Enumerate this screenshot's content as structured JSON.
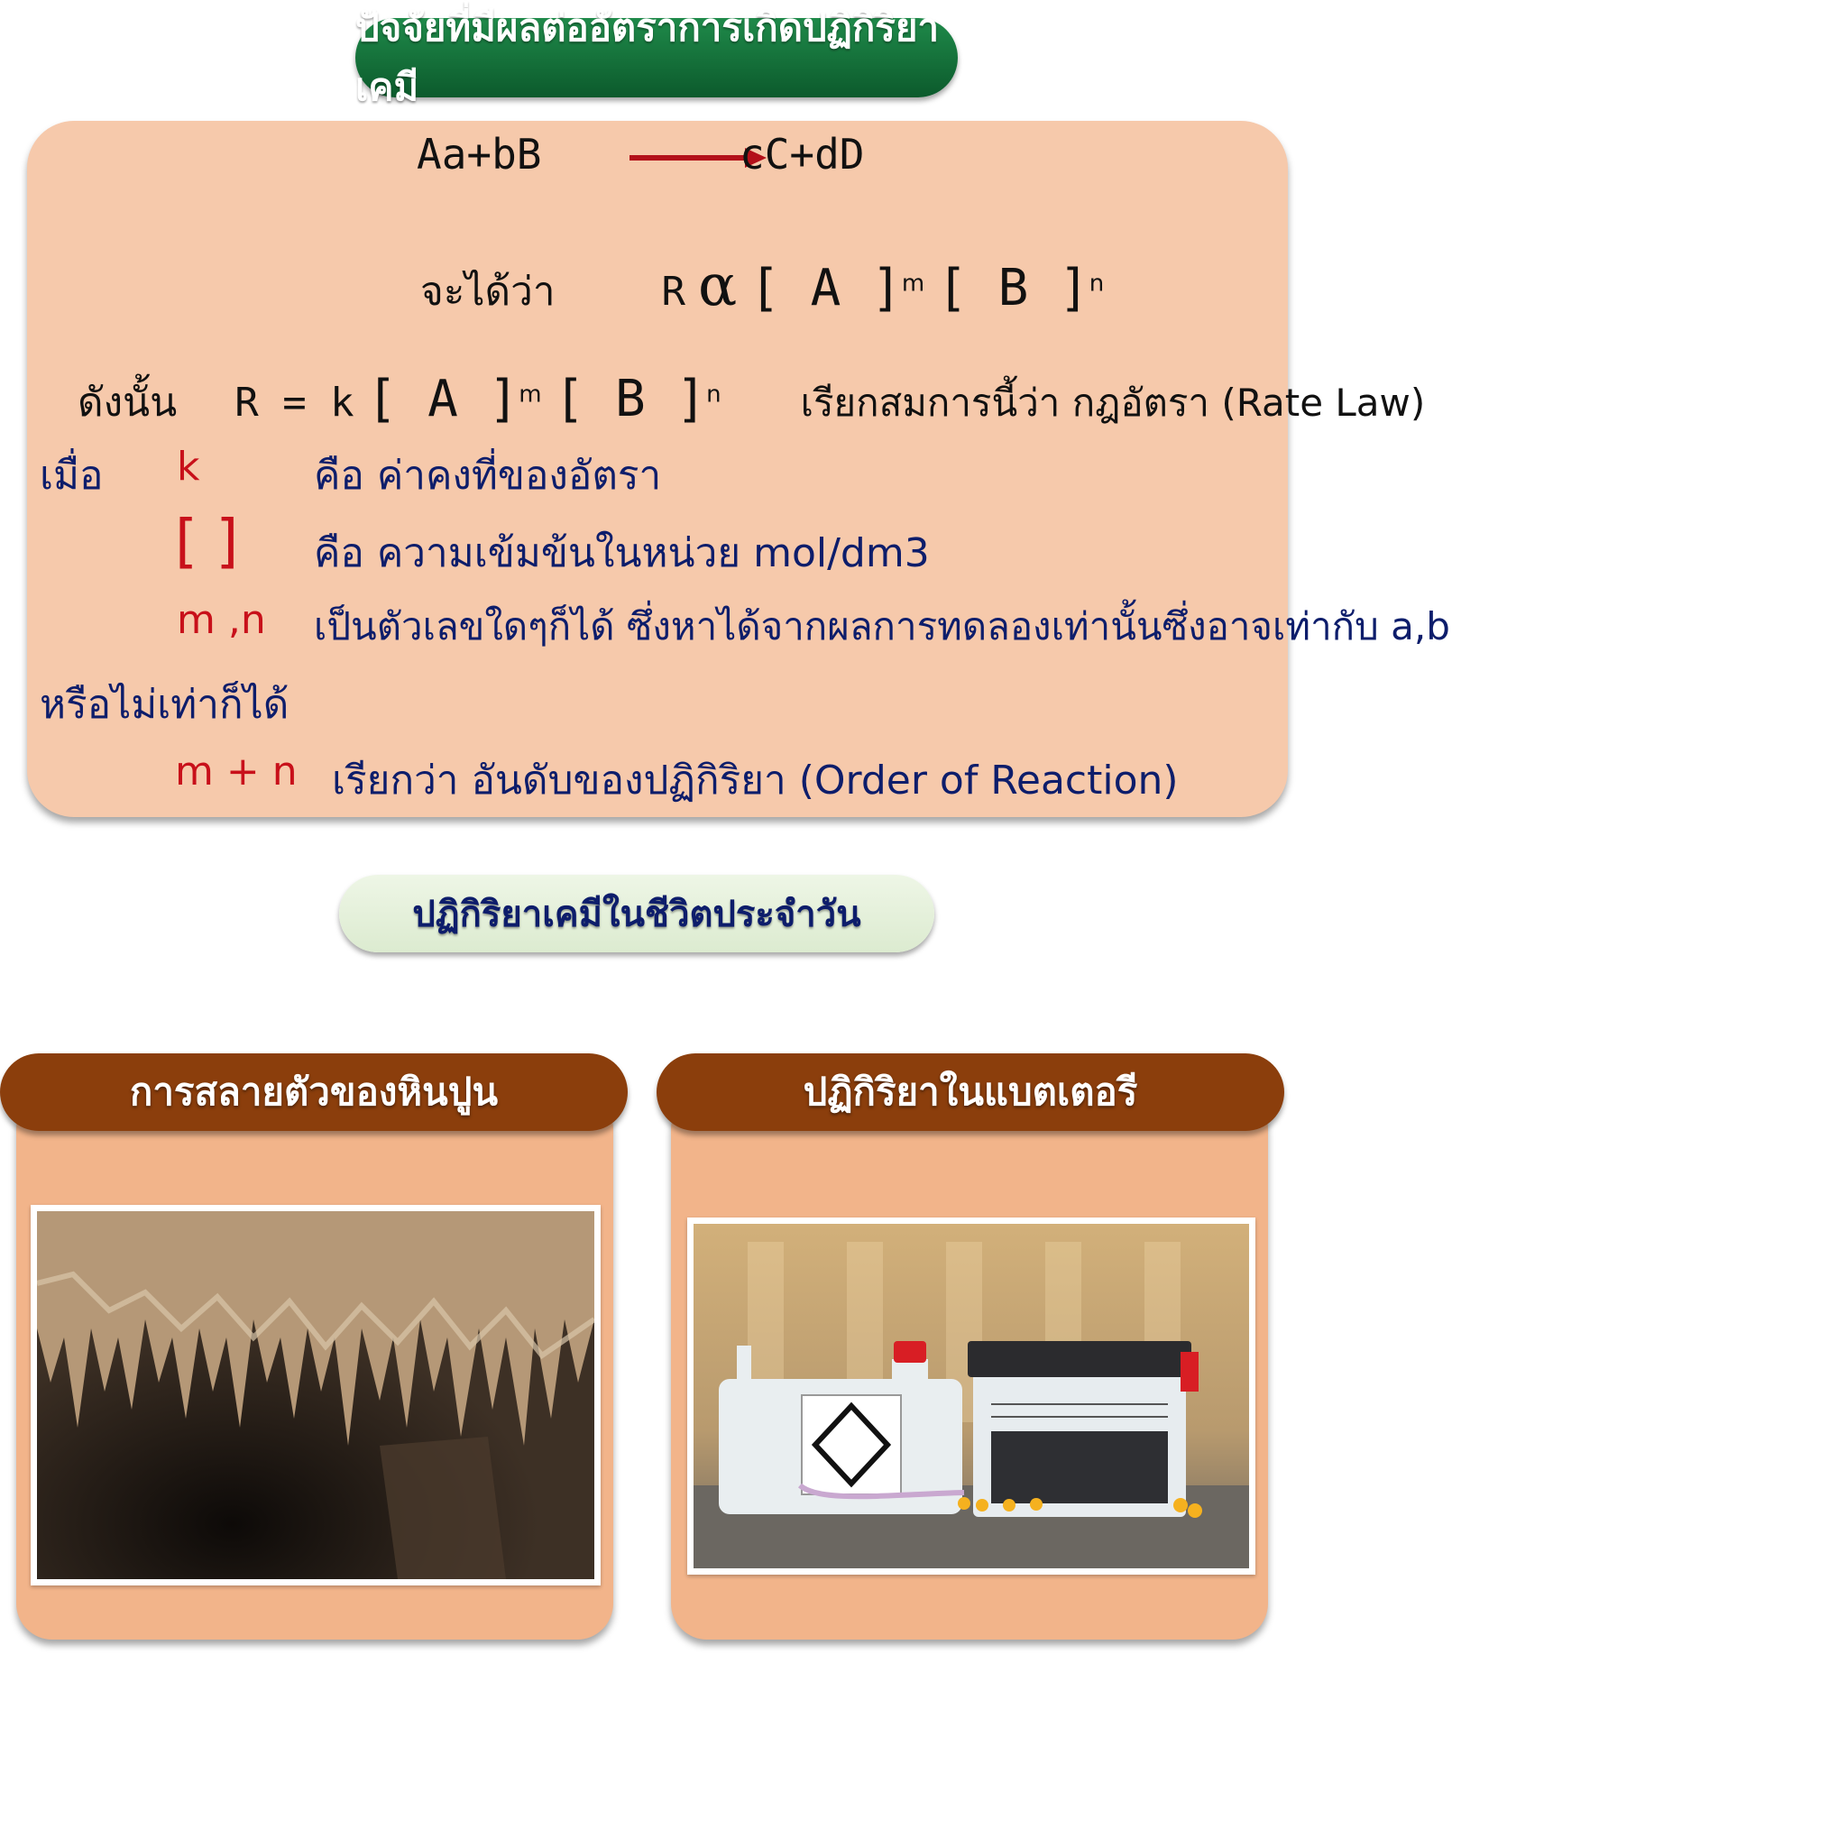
{
  "title": "ปัจจัยที่มีผลต่ออัตราการเกิดปฏิกิริยาเคมี",
  "equation": {
    "reactants": "Aa+bB",
    "products": "cC+dD"
  },
  "proportional": {
    "prefix": "จะได้ว่า",
    "lhs": "R",
    "alpha": "α",
    "b1": "[ A ]",
    "exp_m": "m",
    "b2": "[ B ]",
    "exp_n": "n"
  },
  "rate_law": {
    "prefix": "ดังนั้น",
    "lhs": "R = k",
    "b1": "[ A ]",
    "exp_m": "m",
    "b2": "[ B ]",
    "exp_n": "n",
    "name": "เรียกสมการนี้ว่า  กฎอัตรา  (Rate  Law)"
  },
  "definitions": {
    "when": "เมื่อ",
    "k_symbol": "k",
    "k_text": "คือ ค่าคงที่ของอัตรา",
    "bracket_symbol": "[ ]",
    "bracket_text": "คือ ความเข้มข้นในหน่วย   mol/dm3",
    "mn_symbol": "m ,n",
    "mn_text": "เป็นตัวเลขใดๆก็ได้  ซึ่งหาได้จากผลการทดลองเท่านั้นซึ่งอาจเท่ากับ  a,b",
    "mn_text_cont": "หรือไม่เท่าก็ได้",
    "order_symbol": "m + n",
    "order_text": "เรียกว่า อันดับของปฏิกิริยา (Order of Reaction)"
  },
  "subtitle": "ปฏิกิริยาเคมีในชีวิตประจำวัน",
  "cards": [
    {
      "title": "การสลายตัวของหินปูน",
      "image": "limestone-cave-stalactites"
    },
    {
      "title": "ปฏิกิริยาในแบตเตอรี",
      "image": "motorcycle-battery-with-acid-pack"
    }
  ],
  "colors": {
    "title_green": "#0c5a2c",
    "panel_peach": "#f6c9ab",
    "card_brown": "#8b3e0c",
    "card_orange": "#f2b48a",
    "symbol_red": "#c8101a",
    "text_navy": "#0d1d6b"
  }
}
